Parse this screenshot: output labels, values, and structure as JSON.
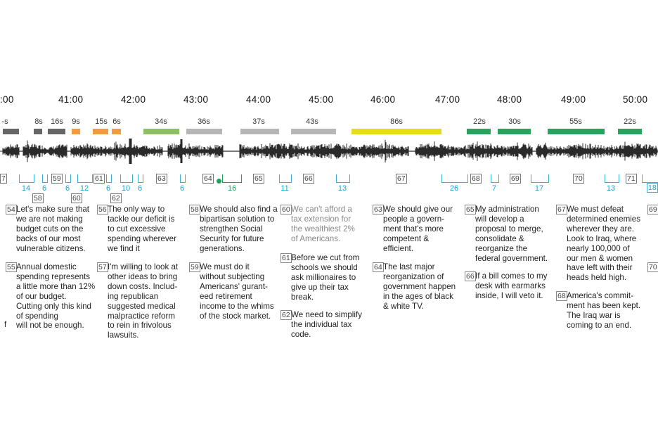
{
  "timeline": {
    "ticks": [
      ":00",
      "41:00",
      "42:00",
      "43:00",
      "44:00",
      "45:00",
      "46:00",
      "47:00",
      "48:00",
      "49:00",
      "50:00"
    ],
    "duration_labels": [
      "-s",
      "8s",
      "16s",
      "9s",
      "15s",
      "6s",
      "34s",
      "36s",
      "37s",
      "43s",
      "86s",
      "22s",
      "30s",
      "55s",
      "22s"
    ],
    "colors": {
      "dark_gray": "#666666",
      "orange": "#f39a3c",
      "light_green": "#8cc063",
      "light_gray": "#b6b6b6",
      "yellow": "#e6dd1a",
      "green": "#27a35e",
      "blue": "#37b1d7"
    }
  },
  "point_numbers": [
    "7",
    "58",
    "59",
    "60",
    "61",
    "62",
    "63",
    "64",
    "65",
    "66",
    "67",
    "68",
    "69",
    "70",
    "71",
    "18"
  ],
  "bracket_labels": [
    "14",
    "6",
    "6",
    "12",
    "6",
    "10",
    "6",
    "6",
    "16",
    "11",
    "13",
    "26",
    "7",
    "17",
    "13"
  ],
  "statements": [
    {
      "num": "54",
      "text": "Let's make sure that\nwe are not making\nbudget cuts on the\nbacks of our most\nvulnerable citizens."
    },
    {
      "num": "55",
      "text": "Annual domestic\nspending represents\na little more than 12%\nof our budget.\nCutting only this kind\nof spending\nwill not be enough."
    },
    {
      "num": "56",
      "text": "The only way to\ntackle our deficit is\nto cut excessive\nspending wherever\nwe find it"
    },
    {
      "num": "57",
      "text": "I'm willing to look at\nother ideas to bring\ndown costs. Includ-\ning republican\nsuggested medical\nmalpractice reform\nto rein in frivolous\nlawsuits."
    },
    {
      "num": "58",
      "text": "We should also find a\nbipartisan solution to\nstrengthen Social\nSecurity for future\ngenerations."
    },
    {
      "num": "59",
      "text": "We must do it\nwithout subjecting\nAmericans' gurant-\need retirement\nincome to the whims\nof the stock market."
    },
    {
      "num": "60",
      "text": "We can't afford a\ntax extension for\nthe wealthiest 2%\nof Americans."
    },
    {
      "num": "61",
      "text": "Before we cut from\nschools we should\nask millionaires to\ngive up their tax\nbreak."
    },
    {
      "num": "62",
      "text": "We need to simplify\nthe individual tax\ncode."
    },
    {
      "num": "63",
      "text": "We should give our\npeople a govern-\nment that's more\ncompetent &\nefficient."
    },
    {
      "num": "64",
      "text": "The last major\nreorganization of\ngovernment happen\nin the ages of black\n& white TV."
    },
    {
      "num": "65",
      "text": "My administration\nwill develop a\nproposal to merge,\nconsolidate &\nreorganize the\nfederal government."
    },
    {
      "num": "66",
      "text": "If a bill comes to my\ndesk with earmarks\ninside, I will veto it."
    },
    {
      "num": "67",
      "text": "We must defeat\ndetermined enemies\nwherever they are.\nLook to Iraq, where\nnearly 100,000 of\nour men & women\nhave left with their\nheads held high."
    },
    {
      "num": "68",
      "text": "America's commit-\nment has been kept.\nThe Iraq war is\ncoming to an end."
    },
    {
      "num": "69",
      "text": ""
    },
    {
      "num": "70",
      "text": ""
    }
  ],
  "margin_char": "f"
}
